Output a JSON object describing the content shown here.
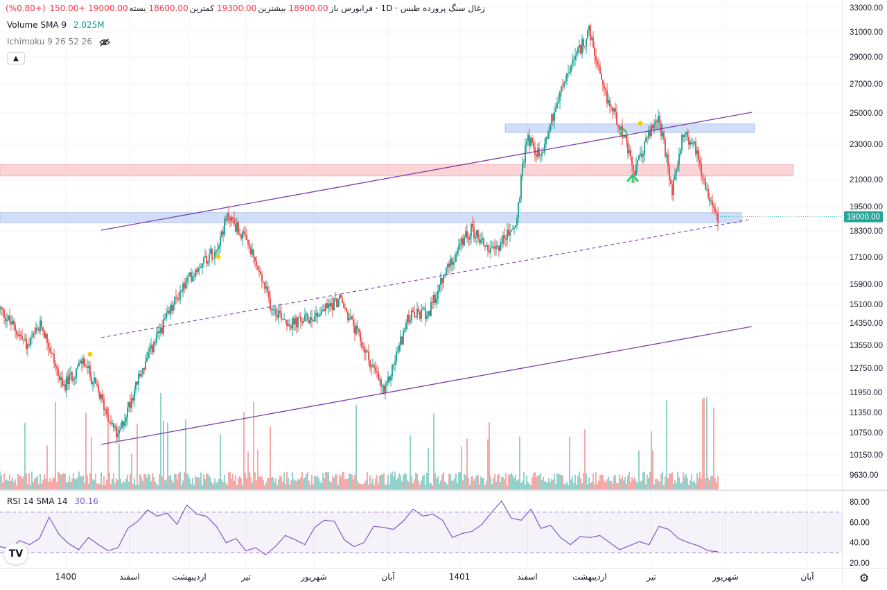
{
  "symbol": {
    "name": "زغال سنگ پرورده طبس",
    "interval": "1D",
    "market": "فرابورس"
  },
  "ohlc": {
    "open_label": "باز",
    "open": "18900.00",
    "high_label": "بیشترین",
    "high": "19300.00",
    "low_label": "کمترین",
    "low": "18600.00",
    "close_label": "بسته",
    "close": "19000.00",
    "change": "+150.00",
    "change_pct": "(+0.80%)"
  },
  "volume_indicator": {
    "label": "Volume SMA 9",
    "value": "2.025M"
  },
  "ichimoku_indicator": {
    "label": "Ichimoku 9 26 52 26"
  },
  "rsi_indicator": {
    "label": "RSI 14 SMA 14",
    "value": "30.16"
  },
  "last_price_tag": "19000.00",
  "colors": {
    "up": "#26a69a",
    "down": "#ef5350",
    "channel": "#7b3fa8",
    "rsi": "#7e57c2",
    "blue_zone": "#b3c9f2",
    "red_zone": "#f8c5c8"
  },
  "chart_data": {
    "type": "candlestick",
    "price_axis": {
      "ticks": [
        33000,
        31000,
        29000,
        27000,
        25000,
        23000,
        21000,
        19500,
        18300,
        17100,
        15900,
        15100,
        14350,
        13550,
        12750,
        11950,
        11350,
        10750,
        10150,
        9630
      ],
      "tick_labels": [
        "33000.00",
        "31000.00",
        "29000.00",
        "27000.00",
        "25000.00",
        "23000.00",
        "21000.00",
        "19500.00",
        "18300.00",
        "17100.00",
        "15900.00",
        "15100.00",
        "14350.00",
        "13550.00",
        "12750.00",
        "11950.00",
        "11350.00",
        "10750.00",
        "10150.00",
        "9630.00"
      ]
    },
    "rsi_axis": {
      "ticks": [
        80,
        60,
        40,
        20
      ],
      "tick_labels": [
        "80.00",
        "60.00",
        "40.00",
        "20.00"
      ],
      "upper_band": 70,
      "lower_band": 30
    },
    "time_axis": {
      "labels": [
        "1400",
        "اسفند",
        "اردیبهشت",
        "تیر",
        "شهریور",
        "آبان",
        "1401",
        "اسفند",
        "اردیبهشت",
        "تیر",
        "شهریور",
        "آبان"
      ]
    },
    "key_price_path": [
      {
        "i": 0,
        "price": 14900
      },
      {
        "i": 40,
        "price": 13500
      },
      {
        "i": 60,
        "price": 14300
      },
      {
        "i": 90,
        "price": 12100
      },
      {
        "i": 120,
        "price": 13000
      },
      {
        "i": 145,
        "price": 11800
      },
      {
        "i": 170,
        "price": 10600
      },
      {
        "i": 200,
        "price": 12400
      },
      {
        "i": 230,
        "price": 14000
      },
      {
        "i": 260,
        "price": 15600
      },
      {
        "i": 290,
        "price": 16900
      },
      {
        "i": 310,
        "price": 17400
      },
      {
        "i": 330,
        "price": 19100
      },
      {
        "i": 360,
        "price": 17500
      },
      {
        "i": 390,
        "price": 15100
      },
      {
        "i": 420,
        "price": 14300
      },
      {
        "i": 450,
        "price": 14600
      },
      {
        "i": 490,
        "price": 15300
      },
      {
        "i": 520,
        "price": 13700
      },
      {
        "i": 555,
        "price": 11900
      },
      {
        "i": 590,
        "price": 14600
      },
      {
        "i": 620,
        "price": 14800
      },
      {
        "i": 650,
        "price": 16900
      },
      {
        "i": 680,
        "price": 18400
      },
      {
        "i": 710,
        "price": 17300
      },
      {
        "i": 745,
        "price": 18600
      },
      {
        "i": 760,
        "price": 23500
      },
      {
        "i": 780,
        "price": 22200
      },
      {
        "i": 800,
        "price": 25200
      },
      {
        "i": 820,
        "price": 27800
      },
      {
        "i": 850,
        "price": 31000
      },
      {
        "i": 870,
        "price": 26500
      },
      {
        "i": 895,
        "price": 24200
      },
      {
        "i": 915,
        "price": 21300
      },
      {
        "i": 935,
        "price": 23500
      },
      {
        "i": 950,
        "price": 24800
      },
      {
        "i": 970,
        "price": 20200
      },
      {
        "i": 985,
        "price": 23700
      },
      {
        "i": 1005,
        "price": 22700
      },
      {
        "i": 1020,
        "price": 20400
      },
      {
        "i": 1036,
        "price": 19000
      }
    ],
    "zones": [
      {
        "name": "blue-zone-upper",
        "price_low": 23750,
        "price_high": 24300,
        "color": "blue"
      },
      {
        "name": "red-zone",
        "price_low": 21200,
        "price_high": 21850,
        "color": "red"
      },
      {
        "name": "blue-zone-lower",
        "price_low": 18700,
        "price_high": 19200,
        "color": "blue"
      }
    ],
    "rsi_values": [
      36,
      34,
      42,
      38,
      44,
      65,
      48,
      39,
      33,
      45,
      38,
      32,
      35,
      54,
      61,
      72,
      66,
      69,
      58,
      77,
      68,
      66,
      56,
      40,
      44,
      32,
      35,
      28,
      36,
      47,
      43,
      38,
      55,
      62,
      61,
      43,
      36,
      40,
      56,
      55,
      53,
      61,
      73,
      66,
      68,
      62,
      45,
      49,
      51,
      58,
      70,
      81,
      64,
      62,
      73,
      54,
      57,
      45,
      38,
      46,
      45,
      47,
      40,
      33,
      37,
      41,
      38,
      56,
      53,
      44,
      40,
      37,
      32,
      31
    ]
  }
}
